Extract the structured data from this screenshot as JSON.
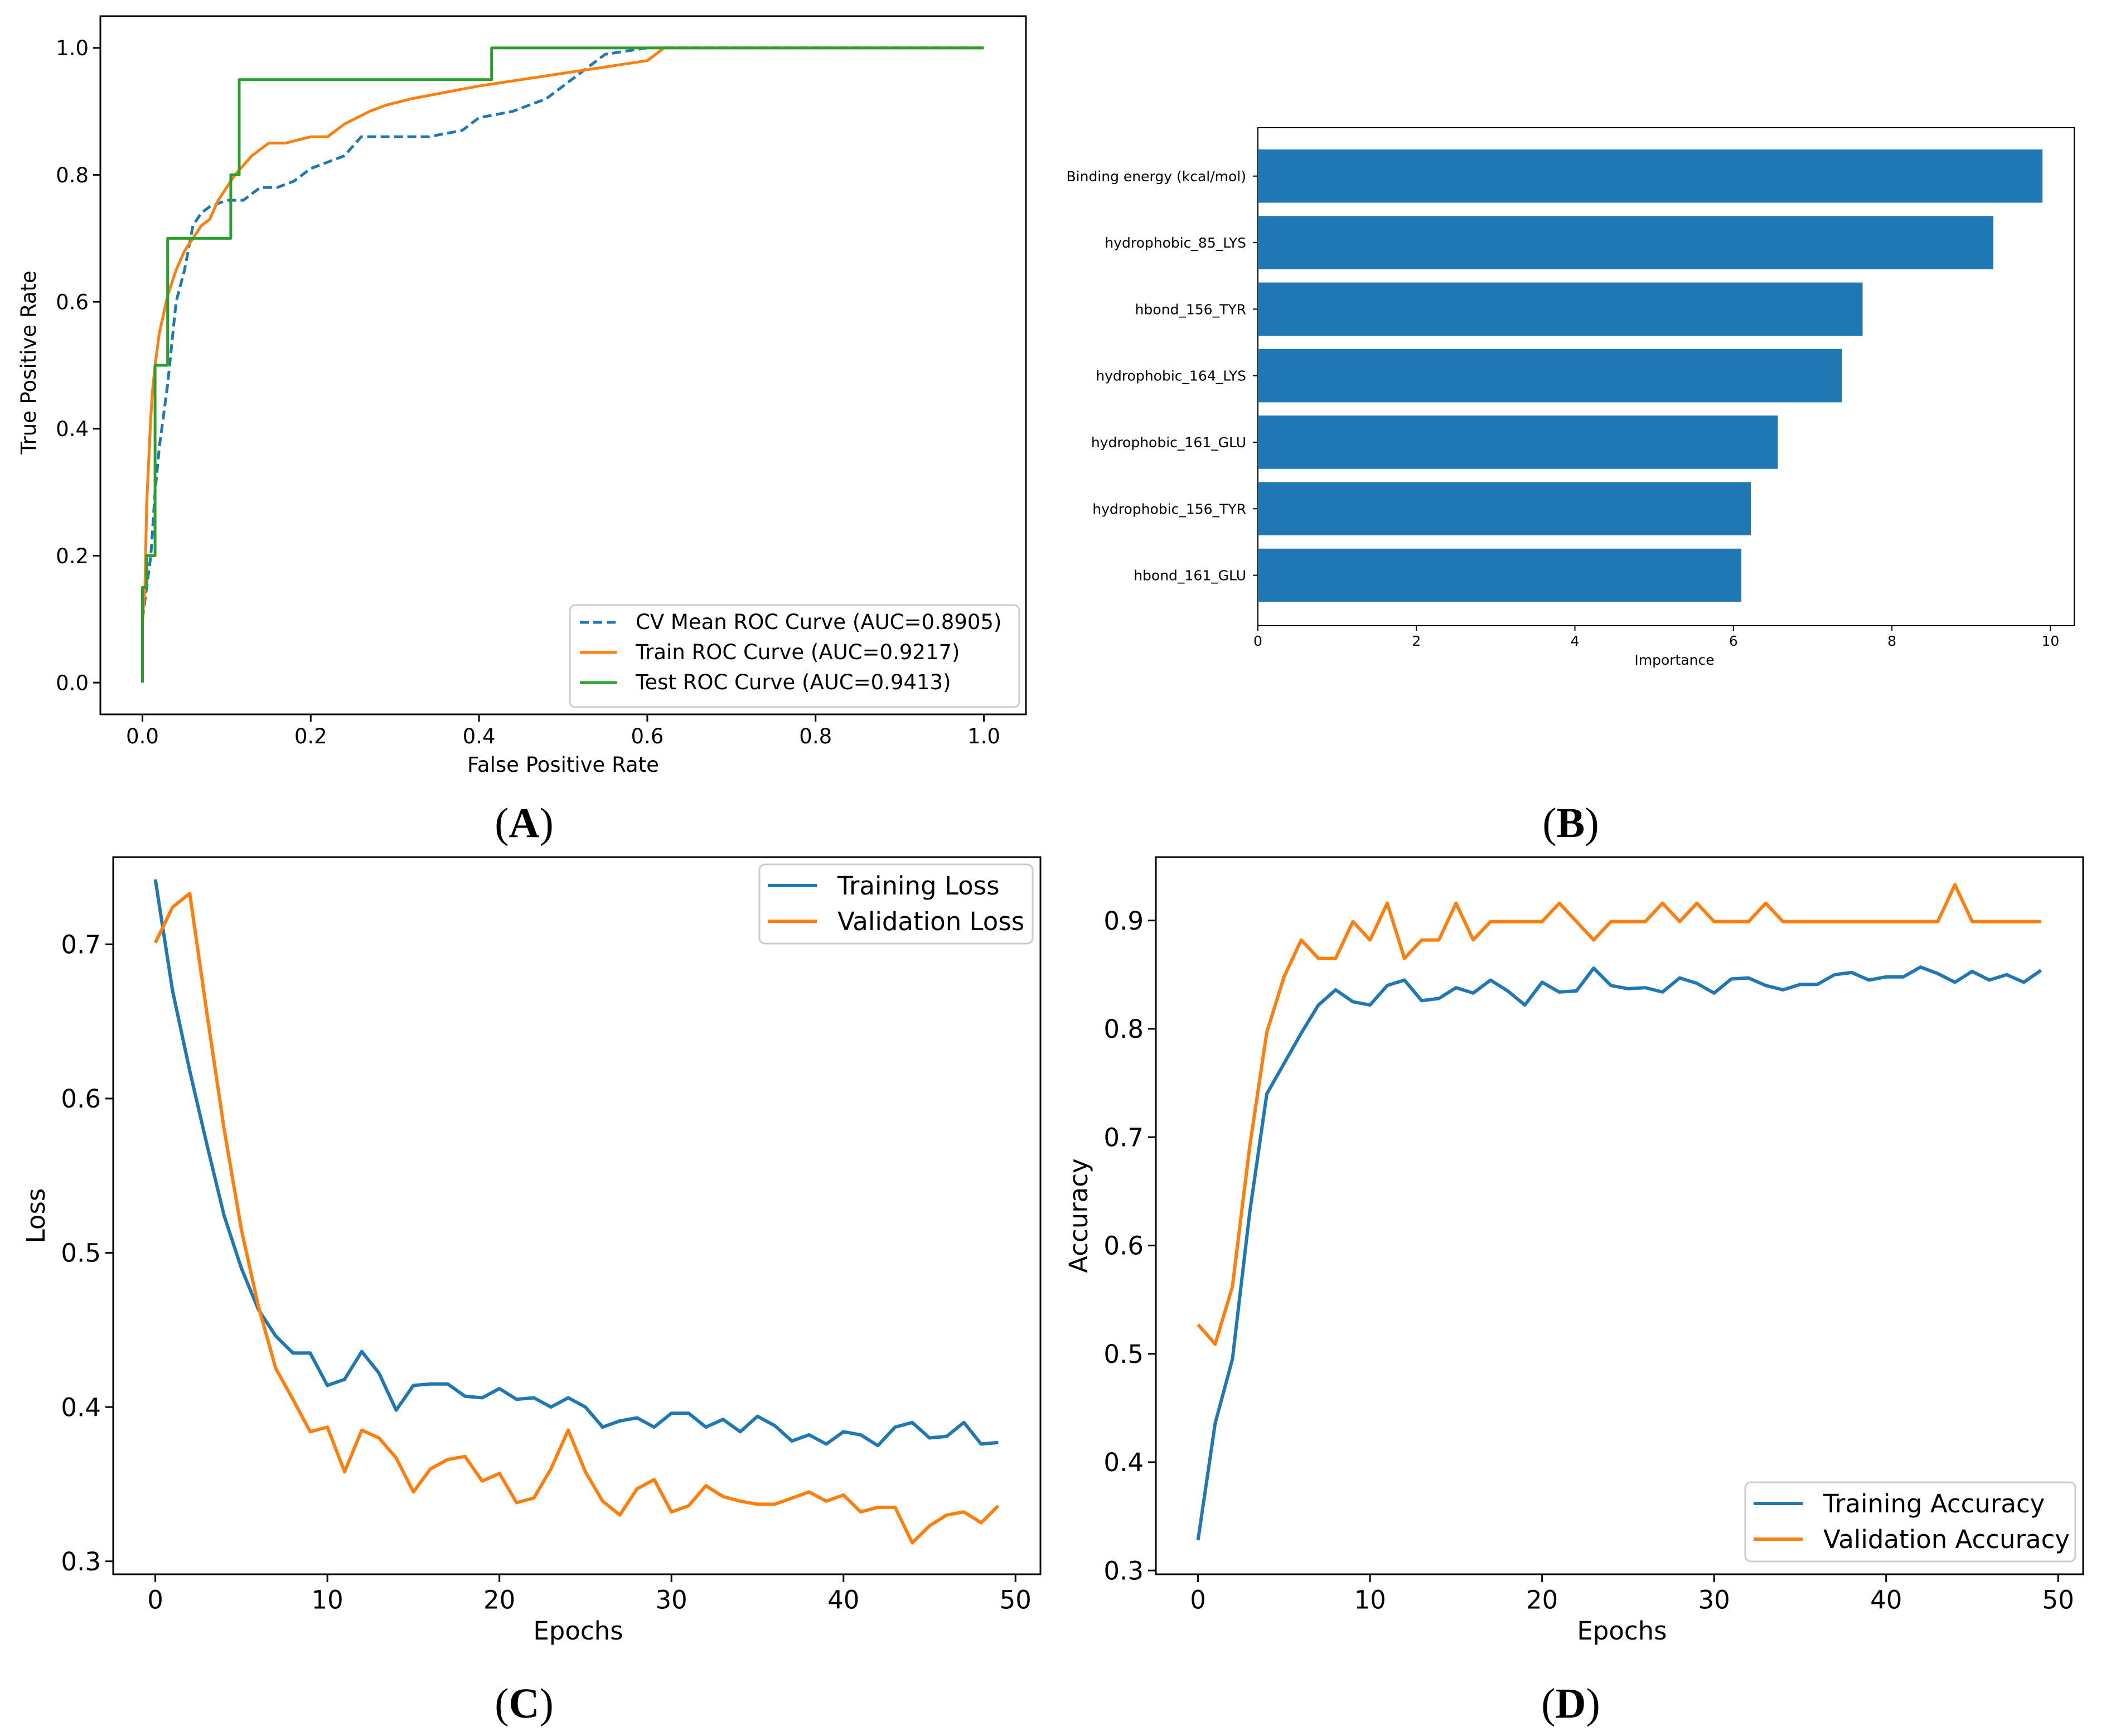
{
  "colors": {
    "blue": "#1f77b4",
    "orange": "#ff7f0e",
    "green": "#2ca02c"
  },
  "panel_labels": {
    "A": {
      "open": "(",
      "letter": "A",
      "close": ")"
    },
    "B": {
      "open": "(",
      "letter": "B",
      "close": ")"
    },
    "C": {
      "open": "(",
      "letter": "C",
      "close": ")"
    },
    "D": {
      "open": "(",
      "letter": "D",
      "close": ")"
    }
  },
  "chart_data": [
    {
      "id": "A",
      "type": "line",
      "title": "",
      "xlabel": "False Positive Rate",
      "ylabel": "True Positive Rate",
      "xlim": [
        -0.05,
        1.05
      ],
      "ylim": [
        -0.05,
        1.05
      ],
      "xticks": [
        0.0,
        0.2,
        0.4,
        0.6,
        0.8,
        1.0
      ],
      "xtick_labels": [
        "0.0",
        "0.2",
        "0.4",
        "0.6",
        "0.8",
        "1.0"
      ],
      "yticks": [
        0.0,
        0.2,
        0.4,
        0.6,
        0.8,
        1.0
      ],
      "ytick_labels": [
        "0.0",
        "0.2",
        "0.4",
        "0.6",
        "0.8",
        "1.0"
      ],
      "legend_position": "lower-right",
      "series": [
        {
          "name": "CV Mean ROC Curve (AUC=0.8905)",
          "color": "blue",
          "dash": true,
          "x": [
            0.0,
            0.005,
            0.01,
            0.015,
            0.02,
            0.03,
            0.04,
            0.05,
            0.06,
            0.07,
            0.08,
            0.1,
            0.12,
            0.14,
            0.16,
            0.18,
            0.2,
            0.22,
            0.24,
            0.26,
            0.3,
            0.34,
            0.38,
            0.4,
            0.44,
            0.48,
            0.52,
            0.55,
            0.6,
            1.0
          ],
          "y": [
            0.1,
            0.15,
            0.2,
            0.3,
            0.37,
            0.47,
            0.6,
            0.65,
            0.72,
            0.74,
            0.75,
            0.76,
            0.76,
            0.78,
            0.78,
            0.79,
            0.81,
            0.82,
            0.83,
            0.86,
            0.86,
            0.86,
            0.87,
            0.89,
            0.9,
            0.92,
            0.96,
            0.99,
            1.0,
            1.0
          ]
        },
        {
          "name": "Train ROC Curve (AUC=0.9217)",
          "color": "orange",
          "dash": false,
          "x": [
            0.0,
            0.003,
            0.005,
            0.01,
            0.012,
            0.015,
            0.02,
            0.025,
            0.03,
            0.04,
            0.05,
            0.06,
            0.07,
            0.08,
            0.09,
            0.1,
            0.11,
            0.13,
            0.15,
            0.17,
            0.2,
            0.22,
            0.24,
            0.27,
            0.29,
            0.32,
            0.36,
            0.4,
            0.45,
            0.5,
            0.55,
            0.6,
            0.62,
            1.0
          ],
          "y": [
            0.1,
            0.15,
            0.28,
            0.42,
            0.46,
            0.5,
            0.55,
            0.58,
            0.61,
            0.65,
            0.68,
            0.7,
            0.72,
            0.73,
            0.76,
            0.78,
            0.8,
            0.83,
            0.85,
            0.85,
            0.86,
            0.86,
            0.88,
            0.9,
            0.91,
            0.92,
            0.93,
            0.94,
            0.95,
            0.96,
            0.97,
            0.98,
            1.0,
            1.0
          ]
        },
        {
          "name": "Test ROC Curve (AUC=0.9413)",
          "color": "green",
          "dash": false,
          "x": [
            0.0,
            0.0,
            0.005,
            0.005,
            0.015,
            0.015,
            0.03,
            0.03,
            0.105,
            0.105,
            0.115,
            0.115,
            0.415,
            0.415,
            1.0
          ],
          "y": [
            0.0,
            0.15,
            0.15,
            0.2,
            0.2,
            0.5,
            0.5,
            0.7,
            0.7,
            0.8,
            0.8,
            0.95,
            0.95,
            1.0,
            1.0
          ]
        }
      ]
    },
    {
      "id": "B",
      "type": "bar",
      "orientation": "horizontal",
      "title": "",
      "xlabel": "Importance",
      "ylabel": "",
      "xlim": [
        0,
        10.3
      ],
      "xticks": [
        0,
        2,
        4,
        6,
        8,
        10
      ],
      "xtick_labels": [
        "0",
        "2",
        "4",
        "6",
        "8",
        "10"
      ],
      "categories": [
        "Binding energy (kcal/mol)",
        "hydrophobic_85_LYS",
        "hbond_156_TYR",
        "hydrophobic_164_LYS",
        "hydrophobic_161_GLU",
        "hydrophobic_156_TYR",
        "hbond_161_GLU"
      ],
      "values": [
        9.9,
        9.28,
        7.63,
        7.37,
        6.56,
        6.22,
        6.1
      ],
      "color": "blue"
    },
    {
      "id": "C",
      "type": "line",
      "title": "",
      "xlabel": "Epochs",
      "ylabel": "Loss",
      "xlim": [
        -2.45,
        51.45
      ],
      "ylim": [
        0.2916,
        0.7565
      ],
      "xticks": [
        0,
        10,
        20,
        30,
        40,
        50
      ],
      "xtick_labels": [
        "0",
        "10",
        "20",
        "30",
        "40",
        "50"
      ],
      "yticks": [
        0.3,
        0.4,
        0.5,
        0.6,
        0.7
      ],
      "ytick_labels": [
        "0.3",
        "0.4",
        "0.5",
        "0.6",
        "0.7"
      ],
      "legend_position": "upper-right",
      "series": [
        {
          "name": "Training Loss",
          "color": "blue",
          "values": [
            0.742,
            0.67,
            0.618,
            0.57,
            0.524,
            0.49,
            0.463,
            0.446,
            0.435,
            0.435,
            0.414,
            0.418,
            0.436,
            0.422,
            0.398,
            0.414,
            0.415,
            0.415,
            0.407,
            0.406,
            0.412,
            0.405,
            0.406,
            0.4,
            0.406,
            0.4,
            0.387,
            0.391,
            0.393,
            0.387,
            0.396,
            0.396,
            0.387,
            0.392,
            0.384,
            0.394,
            0.388,
            0.378,
            0.382,
            0.376,
            0.384,
            0.382,
            0.375,
            0.387,
            0.39,
            0.38,
            0.381,
            0.39,
            0.376,
            0.377
          ]
        },
        {
          "name": "Validation Loss",
          "color": "orange",
          "values": [
            0.701,
            0.724,
            0.733,
            0.655,
            0.58,
            0.515,
            0.465,
            0.425,
            0.405,
            0.384,
            0.387,
            0.358,
            0.385,
            0.38,
            0.367,
            0.345,
            0.36,
            0.366,
            0.368,
            0.352,
            0.357,
            0.338,
            0.341,
            0.36,
            0.385,
            0.358,
            0.339,
            0.33,
            0.347,
            0.353,
            0.332,
            0.336,
            0.349,
            0.342,
            0.339,
            0.337,
            0.337,
            0.341,
            0.345,
            0.339,
            0.343,
            0.332,
            0.335,
            0.335,
            0.312,
            0.323,
            0.33,
            0.332,
            0.325,
            0.336
          ]
        }
      ]
    },
    {
      "id": "D",
      "type": "line",
      "title": "",
      "xlabel": "Epochs",
      "ylabel": "Accuracy",
      "xlim": [
        -2.45,
        51.45
      ],
      "ylim": [
        0.2965,
        0.9585
      ],
      "xticks": [
        0,
        10,
        20,
        30,
        40,
        50
      ],
      "xtick_labels": [
        "0",
        "10",
        "20",
        "30",
        "40",
        "50"
      ],
      "yticks": [
        0.3,
        0.4,
        0.5,
        0.6,
        0.7,
        0.8,
        0.9
      ],
      "ytick_labels": [
        "0.3",
        "0.4",
        "0.5",
        "0.6",
        "0.7",
        "0.8",
        "0.9"
      ],
      "legend_position": "lower-right",
      "series": [
        {
          "name": "Training Accuracy",
          "color": "blue",
          "values": [
            0.328,
            0.436,
            0.495,
            0.63,
            0.74,
            0.768,
            0.796,
            0.822,
            0.836,
            0.825,
            0.822,
            0.84,
            0.845,
            0.826,
            0.828,
            0.838,
            0.833,
            0.845,
            0.835,
            0.822,
            0.843,
            0.834,
            0.835,
            0.856,
            0.84,
            0.837,
            0.838,
            0.834,
            0.847,
            0.842,
            0.833,
            0.846,
            0.847,
            0.84,
            0.836,
            0.841,
            0.841,
            0.85,
            0.852,
            0.845,
            0.848,
            0.848,
            0.857,
            0.851,
            0.843,
            0.853,
            0.845,
            0.85,
            0.843,
            0.854
          ]
        },
        {
          "name": "Validation Accuracy",
          "color": "orange",
          "values": [
            0.527,
            0.509,
            0.562,
            0.691,
            0.797,
            0.848,
            0.882,
            0.865,
            0.865,
            0.899,
            0.882,
            0.916,
            0.865,
            0.882,
            0.882,
            0.916,
            0.882,
            0.899,
            0.899,
            0.899,
            0.899,
            0.916,
            0.899,
            0.882,
            0.899,
            0.899,
            0.899,
            0.916,
            0.899,
            0.916,
            0.899,
            0.899,
            0.899,
            0.916,
            0.899,
            0.899,
            0.899,
            0.899,
            0.899,
            0.899,
            0.899,
            0.899,
            0.899,
            0.899,
            0.933,
            0.899,
            0.899,
            0.899,
            0.899,
            0.899
          ]
        }
      ]
    }
  ]
}
